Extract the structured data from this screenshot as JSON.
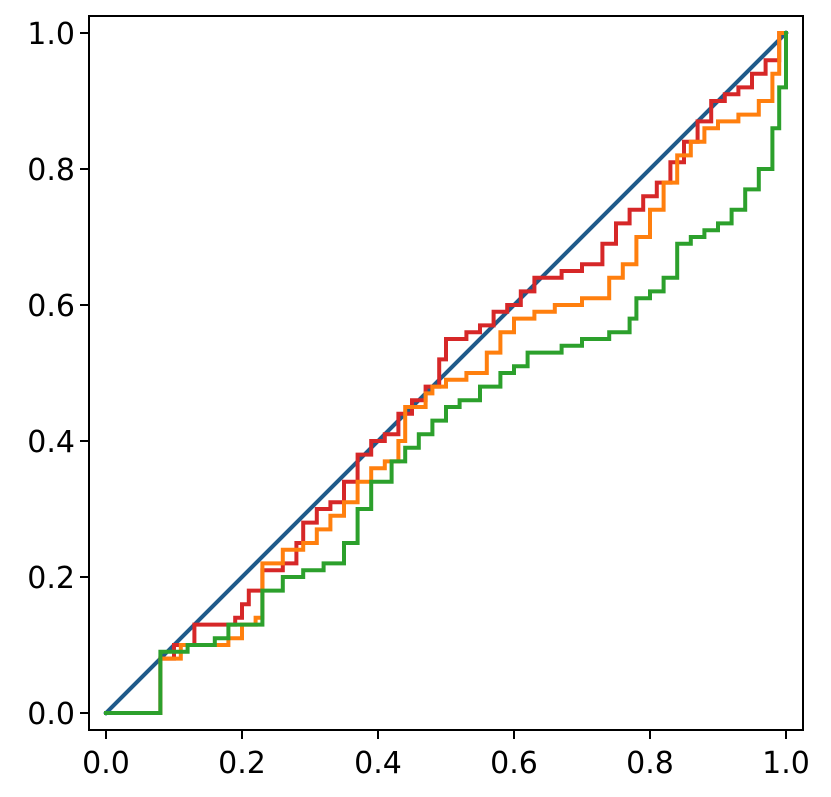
{
  "chart_data": {
    "type": "line",
    "title": "",
    "xlabel": "",
    "ylabel": "",
    "xlim": [
      -0.025,
      1.025
    ],
    "ylim": [
      -0.025,
      1.025
    ],
    "grid": false,
    "legend": "none",
    "x_ticks": [
      "0.0",
      "0.2",
      "0.4",
      "0.6",
      "0.8",
      "1.0"
    ],
    "y_ticks": [
      "0.0",
      "0.2",
      "0.4",
      "0.6",
      "0.8",
      "1.0"
    ],
    "series": [
      {
        "color": "#1f5a8a",
        "step": false,
        "x": [
          0,
          1
        ],
        "y": [
          0,
          1
        ]
      },
      {
        "color": "#d62728",
        "step": true,
        "x": [
          0,
          0.08,
          0.1,
          0.13,
          0.17,
          0.19,
          0.2,
          0.21,
          0.23,
          0.26,
          0.28,
          0.29,
          0.31,
          0.33,
          0.35,
          0.37,
          0.39,
          0.41,
          0.43,
          0.45,
          0.47,
          0.49,
          0.5,
          0.51,
          0.53,
          0.55,
          0.57,
          0.59,
          0.61,
          0.63,
          0.65,
          0.67,
          0.7,
          0.73,
          0.75,
          0.77,
          0.79,
          0.81,
          0.83,
          0.85,
          0.87,
          0.89,
          0.91,
          0.93,
          0.95,
          0.97,
          0.99,
          1
        ],
        "y": [
          0,
          0.08,
          0.1,
          0.13,
          0.13,
          0.14,
          0.16,
          0.18,
          0.21,
          0.22,
          0.25,
          0.28,
          0.3,
          0.31,
          0.34,
          0.38,
          0.4,
          0.41,
          0.44,
          0.46,
          0.48,
          0.52,
          0.55,
          0.55,
          0.56,
          0.57,
          0.59,
          0.6,
          0.62,
          0.64,
          0.64,
          0.65,
          0.66,
          0.69,
          0.72,
          0.74,
          0.76,
          0.78,
          0.81,
          0.84,
          0.87,
          0.9,
          0.91,
          0.92,
          0.94,
          0.96,
          1,
          1
        ]
      },
      {
        "color": "#ff7f0e",
        "step": true,
        "x": [
          0,
          0.08,
          0.11,
          0.15,
          0.18,
          0.2,
          0.22,
          0.23,
          0.26,
          0.29,
          0.31,
          0.33,
          0.35,
          0.37,
          0.39,
          0.41,
          0.43,
          0.44,
          0.47,
          0.48,
          0.5,
          0.53,
          0.56,
          0.58,
          0.6,
          0.63,
          0.66,
          0.68,
          0.7,
          0.74,
          0.76,
          0.78,
          0.8,
          0.82,
          0.84,
          0.86,
          0.88,
          0.9,
          0.93,
          0.96,
          0.98,
          0.99,
          1
        ],
        "y": [
          0,
          0.08,
          0.1,
          0.1,
          0.11,
          0.13,
          0.14,
          0.22,
          0.24,
          0.25,
          0.27,
          0.29,
          0.31,
          0.34,
          0.36,
          0.37,
          0.4,
          0.45,
          0.47,
          0.48,
          0.49,
          0.5,
          0.53,
          0.56,
          0.58,
          0.59,
          0.6,
          0.6,
          0.61,
          0.64,
          0.66,
          0.7,
          0.74,
          0.78,
          0.82,
          0.84,
          0.86,
          0.87,
          0.88,
          0.9,
          0.94,
          1,
          1
        ]
      },
      {
        "color": "#2ca02c",
        "step": true,
        "x": [
          0,
          0.08,
          0.12,
          0.16,
          0.18,
          0.2,
          0.22,
          0.23,
          0.26,
          0.29,
          0.32,
          0.35,
          0.37,
          0.39,
          0.42,
          0.44,
          0.46,
          0.48,
          0.5,
          0.52,
          0.55,
          0.58,
          0.6,
          0.62,
          0.64,
          0.67,
          0.7,
          0.72,
          0.74,
          0.77,
          0.78,
          0.8,
          0.82,
          0.84,
          0.86,
          0.88,
          0.9,
          0.92,
          0.94,
          0.96,
          0.98,
          0.99,
          1
        ],
        "y": [
          0,
          0.09,
          0.1,
          0.11,
          0.13,
          0.13,
          0.13,
          0.18,
          0.2,
          0.21,
          0.22,
          0.25,
          0.3,
          0.34,
          0.37,
          0.39,
          0.41,
          0.43,
          0.45,
          0.46,
          0.48,
          0.5,
          0.51,
          0.53,
          0.53,
          0.54,
          0.55,
          0.55,
          0.56,
          0.58,
          0.61,
          0.62,
          0.64,
          0.69,
          0.7,
          0.71,
          0.72,
          0.74,
          0.77,
          0.8,
          0.86,
          0.92,
          1
        ]
      }
    ]
  }
}
